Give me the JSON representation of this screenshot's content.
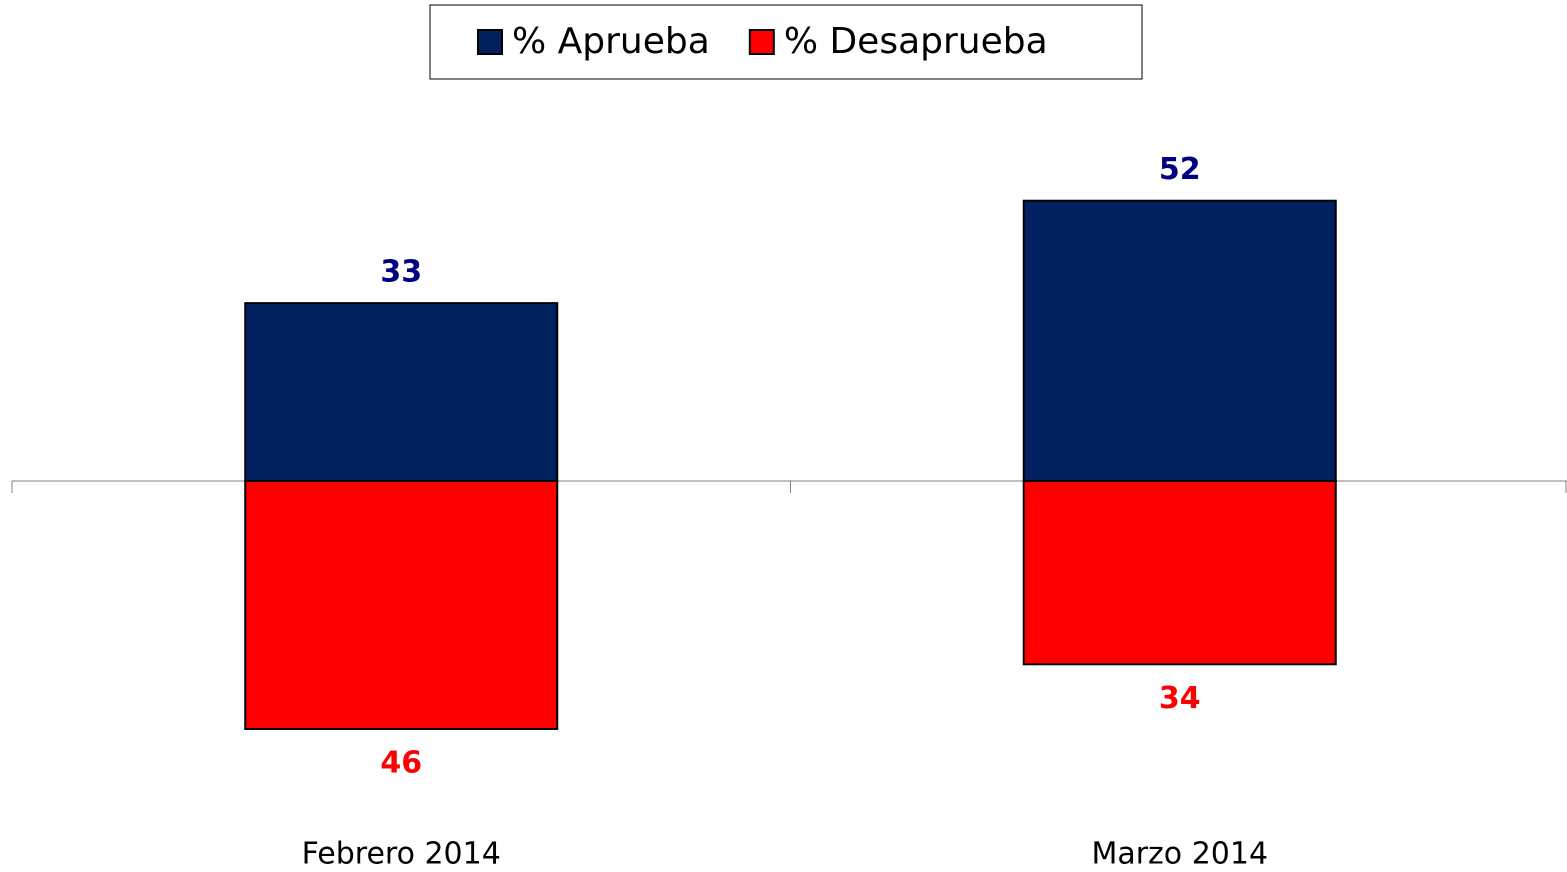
{
  "chart_data": {
    "type": "bar",
    "categories": [
      "Febrero 2014",
      "Marzo 2014"
    ],
    "series": [
      {
        "name": "% Aprueba",
        "color": "#002060",
        "label_color": "#000080",
        "direction": "up",
        "values": [
          33,
          52
        ]
      },
      {
        "name": "% Desaprueba",
        "color": "#ff0000",
        "label_color": "#ff0000",
        "direction": "down",
        "values": [
          46,
          34
        ]
      }
    ],
    "legend": "top"
  }
}
